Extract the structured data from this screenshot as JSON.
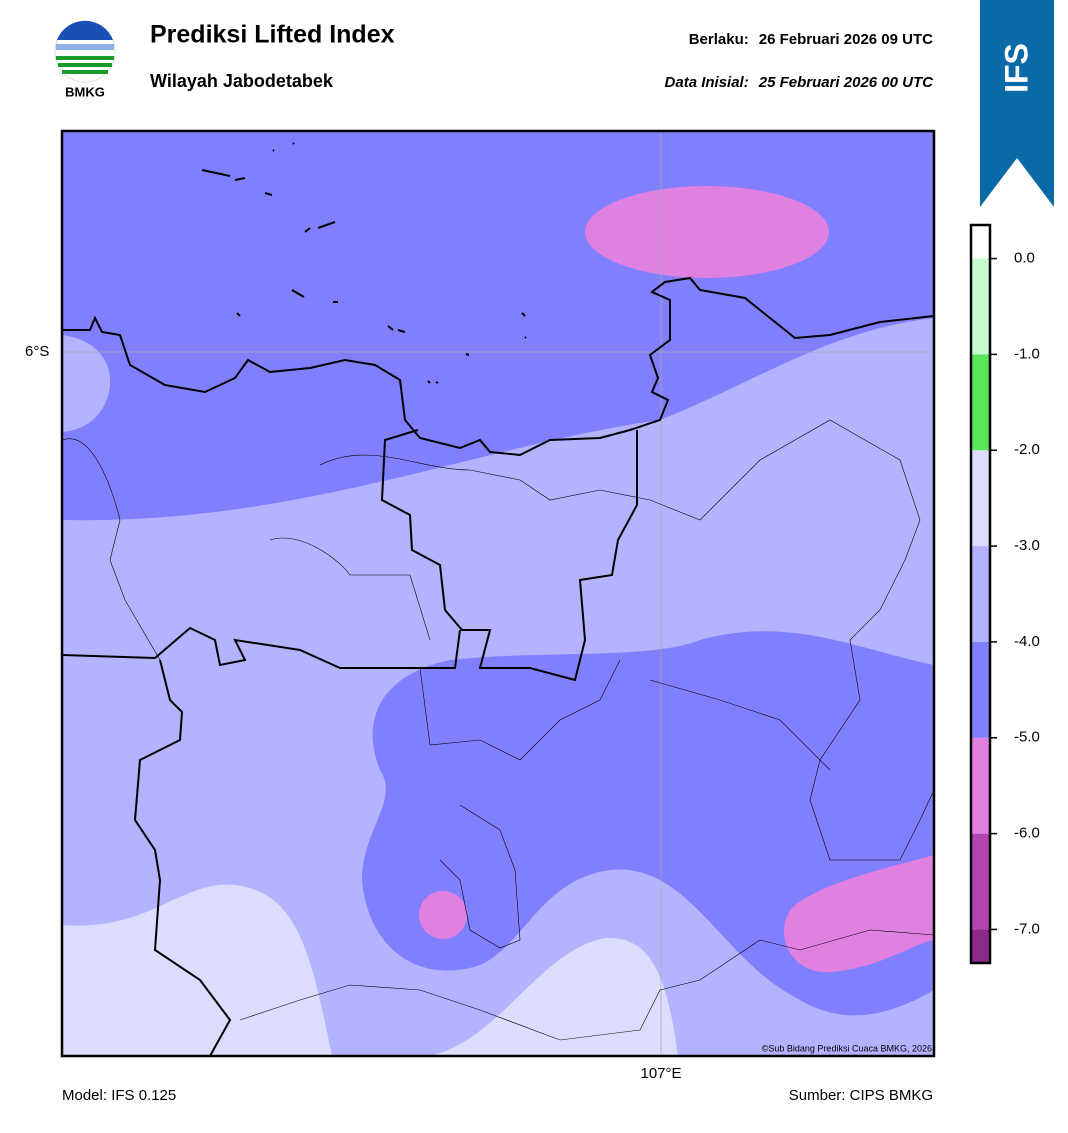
{
  "header": {
    "title": "Prediksi Lifted Index",
    "subtitle": "Wilayah Jabodetabek",
    "valid_label": "Berlaku:",
    "valid_time": "26 Februari 2026 09 UTC",
    "init_label": "Data Inisial:",
    "init_time": "25 Februari 2026 00 UTC",
    "logo_text": "BMKG",
    "badge": "IFS"
  },
  "map": {
    "lat_label": "6°S",
    "lon_label": "107°E",
    "credit": "©Sub Bidang Prediksi Cuaca BMKG, 2026"
  },
  "colorbar": {
    "lim": [
      -7.35,
      0.35
    ],
    "ticks": [
      {
        "value": -7,
        "label": "-7.0"
      },
      {
        "value": -6,
        "label": "-6.0"
      },
      {
        "value": -5,
        "label": "-5.0"
      },
      {
        "value": -4,
        "label": "-4.0"
      },
      {
        "value": -3,
        "label": "-3.0"
      },
      {
        "value": -2,
        "label": "-2.0"
      },
      {
        "value": -1,
        "label": "-1.0"
      },
      {
        "value": 0,
        "label": "0.0"
      }
    ],
    "colors": [
      "#8b2a8b",
      "#b444b4",
      "#e080e0",
      "#8080ff",
      "#b3b3ff",
      "#dcdcfc",
      "#5ae65a",
      "#c8fad2",
      "#ffffff"
    ]
  },
  "footer": {
    "model": "Model: IFS 0.125",
    "source": "Sumber: CIPS BMKG"
  }
}
